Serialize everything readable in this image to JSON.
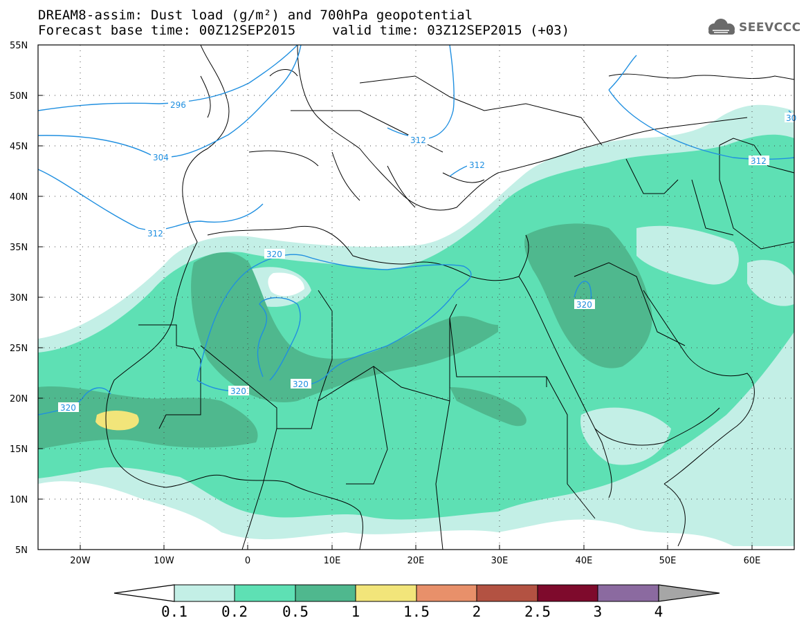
{
  "title": {
    "line1": "DREAM8-assim: Dust load (g/m²) and 700hPa geopotential",
    "line2": "Forecast base time: 00Z12SEP2015",
    "valid": "valid time: 03Z12SEP2015 (+03)"
  },
  "logo": {
    "text": "SEEVCCC",
    "icon": "cloud-logo-icon"
  },
  "axes": {
    "lat_ticks": [
      "55N",
      "50N",
      "45N",
      "40N",
      "35N",
      "30N",
      "25N",
      "20N",
      "15N",
      "10N",
      "5N"
    ],
    "lon_ticks": [
      "20W",
      "10W",
      "0",
      "10E",
      "20E",
      "30E",
      "40E",
      "50E",
      "60E"
    ],
    "lon_range": [
      -25,
      65
    ],
    "lat_range": [
      5,
      55
    ],
    "grid": "dotted"
  },
  "contours": {
    "color": "#1f8fe0",
    "labels": [
      "296",
      "304",
      "312",
      "312",
      "312",
      "312",
      "320",
      "320",
      "320",
      "320",
      "320",
      "320",
      "30"
    ]
  },
  "colorbar": {
    "labels": [
      "0.1",
      "0.2",
      "0.5",
      "1",
      "1.5",
      "2",
      "2.5",
      "3",
      "4"
    ],
    "colors": [
      "#c3efe6",
      "#5ee0b4",
      "#4fb88e",
      "#f2e57a",
      "#e8906a",
      "#b35242",
      "#7e0a2c",
      "#8b6aa0",
      "#a6a6a6"
    ],
    "under_color": "#ffffff"
  },
  "palette": {
    "level1": "#c3efe6",
    "level2": "#5ee0b4",
    "level3": "#4fb88e",
    "level4": "#f2e57a",
    "coast": "#000000",
    "contour": "#1f8fe0"
  }
}
